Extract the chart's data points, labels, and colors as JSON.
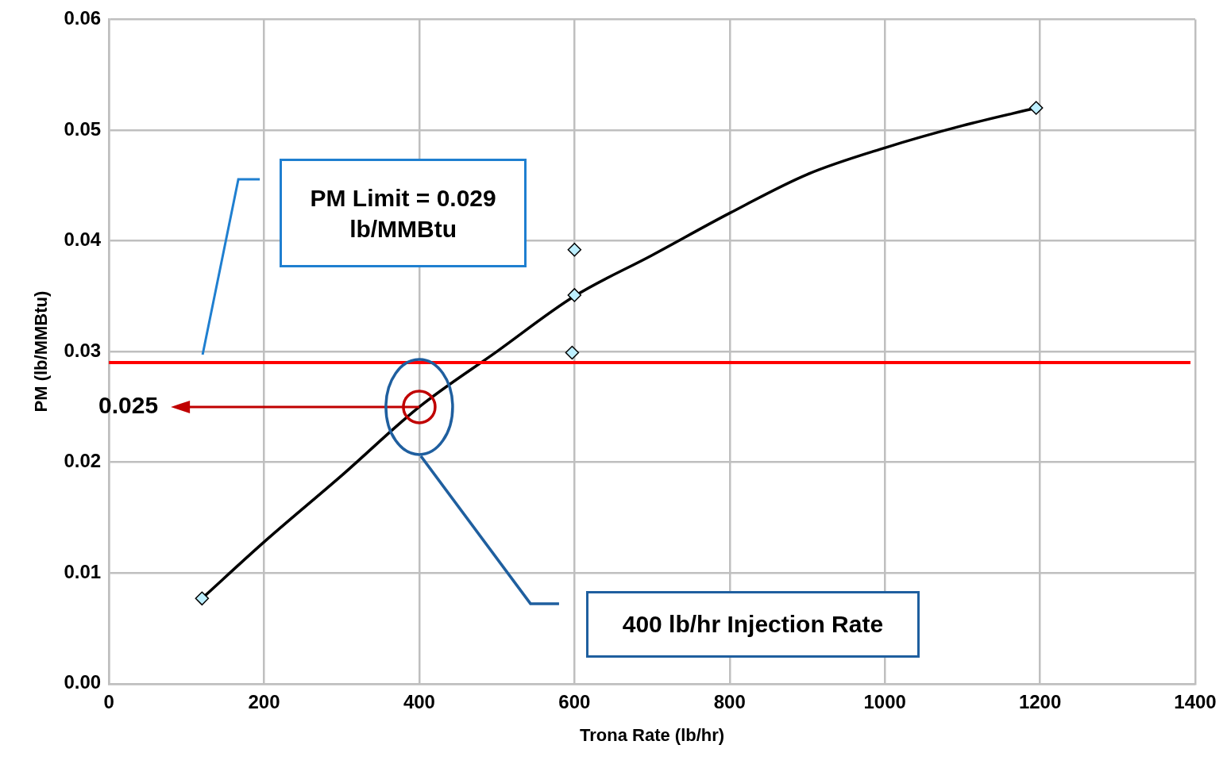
{
  "chart_data": {
    "type": "scatter",
    "xlabel": "Trona Rate (lb/hr)",
    "ylabel": "PM (lb/MMBtu)",
    "xlim": [
      0,
      1400
    ],
    "xticks": [
      0,
      200,
      400,
      600,
      800,
      1000,
      1200,
      1400
    ],
    "ylim": [
      0,
      0.06
    ],
    "yticks": [
      {
        "value": 0,
        "label": "0.00"
      },
      0.01,
      0.02,
      0.03,
      0.04,
      0.05,
      0.06
    ],
    "grid": true,
    "legend": false,
    "marker": "diamond",
    "series": [
      {
        "color": "#bdefff",
        "x": [
          120,
          600,
          600,
          597,
          1195
        ],
        "values": [
          0.0077,
          0.0392,
          0.0351,
          0.0299,
          0.052
        ]
      },
      {
        "type": "line",
        "color": "#000000",
        "marker": "none",
        "x": [
          120,
          200,
          300,
          400,
          500,
          600,
          700,
          800,
          900,
          1000,
          1100,
          1195
        ],
        "values": [
          0.0077,
          0.0128,
          0.0188,
          0.025,
          0.03,
          0.035,
          0.0387,
          0.0425,
          0.046,
          0.0484,
          0.0504,
          0.052
        ]
      }
    ],
    "ref_lines": [
      {
        "axis": "y",
        "value": 0.029,
        "color": "#ff0000",
        "line_style": "solid"
      }
    ],
    "annotations": [
      {
        "text": "0.025",
        "x": 400,
        "y": 0.025
      },
      "PM Limit = 0.029 lb/MMBtu",
      "400 lb/hr Injection Rate"
    ]
  }
}
